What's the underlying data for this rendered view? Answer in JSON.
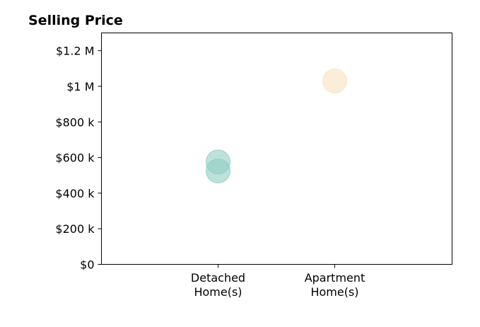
{
  "chart_data": {
    "type": "scatter",
    "title": "Selling Price",
    "xlabel": "",
    "ylabel": "",
    "categories": [
      [
        "Detached",
        "Home(s)"
      ],
      [
        "Apartment",
        "Home(s)"
      ]
    ],
    "ylim": [
      0,
      1300000
    ],
    "yticks": [
      0,
      200000,
      400000,
      600000,
      800000,
      1000000,
      1200000
    ],
    "ytick_labels": [
      "$0",
      "$200 k",
      "$400 k",
      "$600 k",
      "$800 k",
      "$1 M",
      "$1.2 M"
    ],
    "points": [
      {
        "category": 0,
        "value": 575000,
        "color": "#8fcfc3"
      },
      {
        "category": 0,
        "value": 525000,
        "color": "#8fcfc3"
      },
      {
        "category": 1,
        "value": 1030000,
        "color": "#f6e3bf"
      }
    ],
    "marker_opacity": 0.6,
    "grid": false,
    "legend": "none"
  }
}
